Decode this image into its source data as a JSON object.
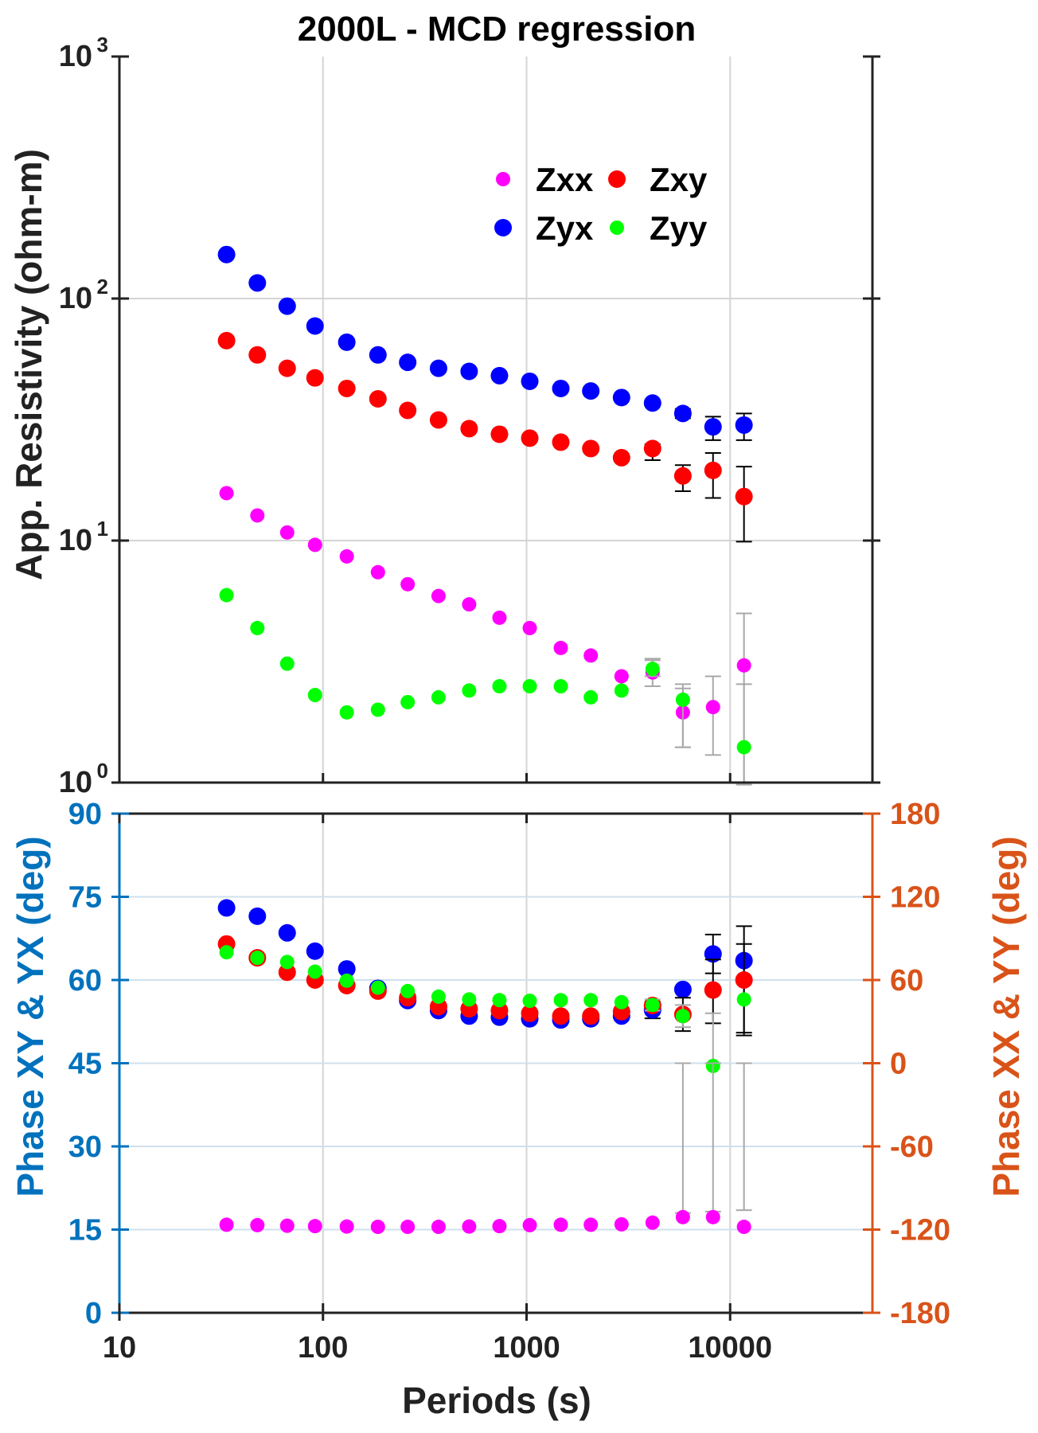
{
  "chart_data": [
    {
      "type": "scatter",
      "title": "2000L - MCD regression",
      "ylabel": "App. Resistivity (ohm-m)",
      "xscale": "log",
      "yscale": "log",
      "xlim": [
        10,
        50000
      ],
      "ylim": [
        1,
        1000
      ],
      "y_ticks": [
        {
          "value": 1,
          "base": "10",
          "exp": "0"
        },
        {
          "value": 10,
          "base": "10",
          "exp": "1"
        },
        {
          "value": 100,
          "base": "10",
          "exp": "2"
        },
        {
          "value": 1000,
          "base": "10",
          "exp": "3"
        }
      ],
      "grid": true,
      "legend": {
        "position": "top-right",
        "entries": [
          {
            "label": "Zxx",
            "color": "#ff00ff"
          },
          {
            "label": "Zxy",
            "color": "#ff0000"
          },
          {
            "label": "Zyx",
            "color": "#0000ff"
          },
          {
            "label": "Zyy",
            "color": "#00ff00"
          }
        ]
      },
      "x": [
        33.6,
        47.6,
        66.7,
        91.4,
        130.9,
        186.2,
        260.7,
        369.5,
        522.4,
        736.0,
        1036.8,
        1472.8,
        2067.7,
        2928.0,
        4158.8,
        5859.5,
        8240.9,
        11696.8
      ],
      "series": [
        {
          "name": "Zyx",
          "color": "#0000ff",
          "size": "large",
          "values": [
            152,
            116,
            93,
            77,
            66,
            58.5,
            54.5,
            51.5,
            50,
            48,
            45.5,
            42.5,
            41.5,
            39,
            37,
            33.5,
            29.5,
            30
          ],
          "err_lo": [
            null,
            null,
            null,
            null,
            null,
            null,
            null,
            null,
            null,
            null,
            null,
            null,
            null,
            null,
            null,
            1.5,
            3.5,
            4
          ],
          "err_hi": [
            null,
            null,
            null,
            null,
            null,
            null,
            null,
            null,
            null,
            null,
            null,
            null,
            null,
            null,
            null,
            1.5,
            3,
            3.5
          ]
        },
        {
          "name": "Zxy",
          "color": "#ff0000",
          "size": "large",
          "values": [
            67,
            58.5,
            51.5,
            47,
            42.5,
            38.5,
            34.5,
            31.5,
            29,
            27.5,
            26.5,
            25.5,
            24,
            22,
            24,
            18.5,
            19.5,
            15.2
          ],
          "err_lo": [
            null,
            null,
            null,
            null,
            null,
            null,
            null,
            null,
            null,
            null,
            null,
            null,
            null,
            null,
            2.5,
            2.5,
            4.5,
            5.3
          ],
          "err_hi": [
            null,
            null,
            null,
            null,
            null,
            null,
            null,
            null,
            null,
            null,
            null,
            null,
            null,
            null,
            1,
            2,
            3.5,
            5
          ]
        },
        {
          "name": "Zxx",
          "color": "#ff00ff",
          "size": "small",
          "values": [
            15.7,
            12.7,
            10.8,
            9.6,
            8.6,
            7.4,
            6.6,
            5.9,
            5.45,
            4.8,
            4.35,
            3.6,
            3.35,
            2.75,
            2.85,
            1.95,
            2.05,
            3.05
          ],
          "err_lo": [
            null,
            null,
            null,
            null,
            null,
            null,
            null,
            null,
            null,
            null,
            null,
            null,
            null,
            null,
            0.35,
            0.55,
            0.75,
            2.05
          ],
          "err_hi": [
            null,
            null,
            null,
            null,
            null,
            null,
            null,
            null,
            null,
            null,
            null,
            null,
            null,
            null,
            0.35,
            0.5,
            0.7,
            1.95
          ]
        },
        {
          "name": "Zyy",
          "color": "#00ff00",
          "size": "small",
          "values": [
            5.95,
            4.35,
            3.1,
            2.3,
            1.95,
            2.0,
            2.15,
            2.25,
            2.4,
            2.5,
            2.5,
            2.5,
            2.25,
            2.4,
            2.95,
            2.2,
            null,
            1.4
          ],
          "err_lo": [
            null,
            null,
            null,
            null,
            null,
            null,
            null,
            null,
            null,
            null,
            null,
            null,
            null,
            null,
            0.2,
            0.8,
            null,
            0.42
          ],
          "err_hi": [
            null,
            null,
            null,
            null,
            null,
            null,
            null,
            null,
            null,
            null,
            null,
            null,
            null,
            null,
            0.3,
            0.35,
            null,
            1.15
          ]
        }
      ]
    },
    {
      "type": "scatter",
      "xlabel": "Periods (s)",
      "ylabel_left": "Phase XY & YX (deg)",
      "ylabel_right": "Phase XX & YY (deg)",
      "left_color": "#0072bd",
      "right_color": "#d95319",
      "xscale": "log",
      "xlim": [
        10,
        50000
      ],
      "x_ticks": [
        {
          "value": 10,
          "label": "10"
        },
        {
          "value": 100,
          "label": "100"
        },
        {
          "value": 1000,
          "label": "1000"
        },
        {
          "value": 10000,
          "label": "10000"
        }
      ],
      "ylim_left": [
        0,
        90
      ],
      "ylim_right": [
        -180,
        180
      ],
      "y_ticks_left": [
        "0",
        "15",
        "30",
        "45",
        "60",
        "75",
        "90"
      ],
      "y_ticks_right": [
        "-180",
        "-120",
        "-60",
        "0",
        "60",
        "120",
        "180"
      ],
      "grid": true,
      "x": [
        33.6,
        47.6,
        66.7,
        91.4,
        130.9,
        186.2,
        260.7,
        369.5,
        522.4,
        736.0,
        1036.8,
        1472.8,
        2067.7,
        2928.0,
        4158.8,
        5859.5,
        8240.9,
        11696.8
      ],
      "series": [
        {
          "name": "Zyx",
          "color": "#0000ff",
          "size": "large",
          "axis": "left",
          "values": [
            73,
            71.5,
            68.5,
            65.2,
            62,
            58.5,
            56.3,
            54.5,
            53.5,
            53.3,
            53,
            52.8,
            53,
            53.5,
            54.6,
            58.3,
            64.7,
            63.5
          ],
          "err_lo": [
            null,
            null,
            null,
            null,
            null,
            null,
            null,
            null,
            null,
            null,
            null,
            null,
            null,
            null,
            1.5,
            null,
            3.5,
            13.5
          ],
          "err_hi": [
            null,
            null,
            null,
            null,
            null,
            null,
            null,
            null,
            null,
            null,
            null,
            null,
            null,
            null,
            1.5,
            null,
            3.5,
            6.2
          ]
        },
        {
          "name": "Zxy",
          "color": "#ff0000",
          "size": "large",
          "axis": "left",
          "values": [
            66.5,
            64,
            61.4,
            60,
            59,
            58,
            56.8,
            55.2,
            54.8,
            54.5,
            54,
            53.5,
            53.5,
            54.3,
            55.4,
            53.8,
            58.2,
            60
          ],
          "err_lo": [
            null,
            null,
            null,
            null,
            null,
            null,
            null,
            null,
            null,
            null,
            null,
            null,
            null,
            null,
            null,
            3,
            6,
            9.5
          ],
          "err_hi": [
            null,
            null,
            null,
            null,
            null,
            null,
            null,
            null,
            null,
            null,
            null,
            null,
            null,
            null,
            null,
            3,
            5.5,
            6.5
          ]
        },
        {
          "name": "Zyy",
          "color": "#00ff00",
          "size": "small",
          "axis": "right",
          "values": [
            80,
            76,
            73,
            66,
            59.5,
            54.5,
            52,
            48,
            46,
            45.5,
            45,
            45.5,
            45.5,
            44,
            42,
            34,
            -2,
            46
          ],
          "err_lo": [
            null,
            null,
            null,
            null,
            null,
            null,
            null,
            null,
            null,
            null,
            null,
            null,
            null,
            null,
            4,
            8,
            38,
            null
          ],
          "err_hi": [
            null,
            null,
            null,
            null,
            null,
            null,
            null,
            null,
            null,
            null,
            null,
            null,
            null,
            null,
            4,
            8,
            38,
            null
          ]
        },
        {
          "name": "Zxx",
          "color": "#ff00ff",
          "size": "small",
          "axis": "right",
          "values": [
            -116.5,
            -116.8,
            -117.2,
            -117.5,
            -117.8,
            -118,
            -118,
            -118,
            -117.8,
            -117.5,
            -116.8,
            -116.5,
            -116.5,
            -116.2,
            -115,
            -111,
            -111,
            -118
          ],
          "err_lo": [
            null,
            null,
            null,
            null,
            null,
            null,
            null,
            null,
            null,
            null,
            null,
            null,
            null,
            null,
            null,
            3,
            4,
            12
          ],
          "err_hi": [
            null,
            null,
            null,
            null,
            null,
            null,
            null,
            null,
            null,
            null,
            null,
            null,
            null,
            null,
            null,
            3,
            4,
            12
          ]
        }
      ]
    }
  ]
}
